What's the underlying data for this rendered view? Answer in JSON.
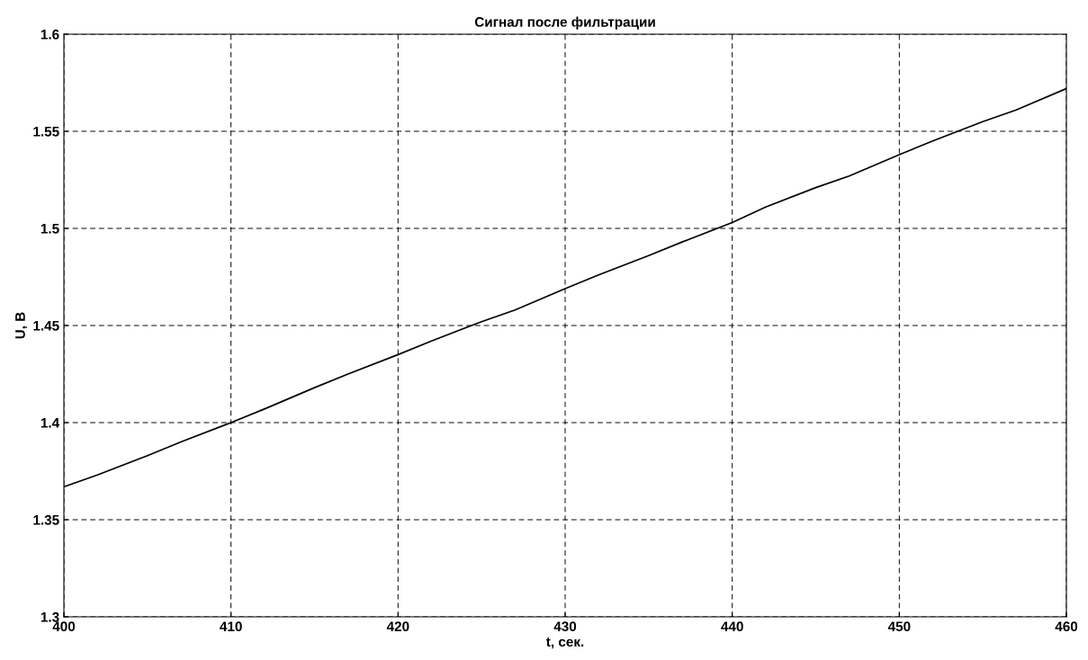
{
  "chart_data": {
    "type": "line",
    "title": "Сигнал после фильтрации",
    "xlabel": "t, сек.",
    "ylabel": "U, В",
    "x": [
      400,
      402,
      405,
      407,
      410,
      412,
      415,
      417,
      420,
      422,
      425,
      427,
      430,
      432,
      435,
      437,
      440,
      442,
      445,
      447,
      450,
      452,
      455,
      457,
      460
    ],
    "series": [
      {
        "color": "#000000",
        "values": [
          1.367,
          1.373,
          1.383,
          1.39,
          1.4,
          1.407,
          1.418,
          1.425,
          1.435,
          1.442,
          1.452,
          1.458,
          1.469,
          1.476,
          1.486,
          1.493,
          1.503,
          1.511,
          1.521,
          1.527,
          1.538,
          1.545,
          1.555,
          1.561,
          1.572
        ]
      }
    ],
    "xlim": [
      400,
      460
    ],
    "xticks": [
      400,
      410,
      420,
      430,
      440,
      450,
      460
    ],
    "ylim": [
      1.3,
      1.6
    ],
    "yticks": [
      1.3,
      1.35,
      1.4,
      1.45,
      1.5,
      1.55,
      1.6
    ],
    "grid": true,
    "line_style": "solid",
    "marker": "none"
  }
}
